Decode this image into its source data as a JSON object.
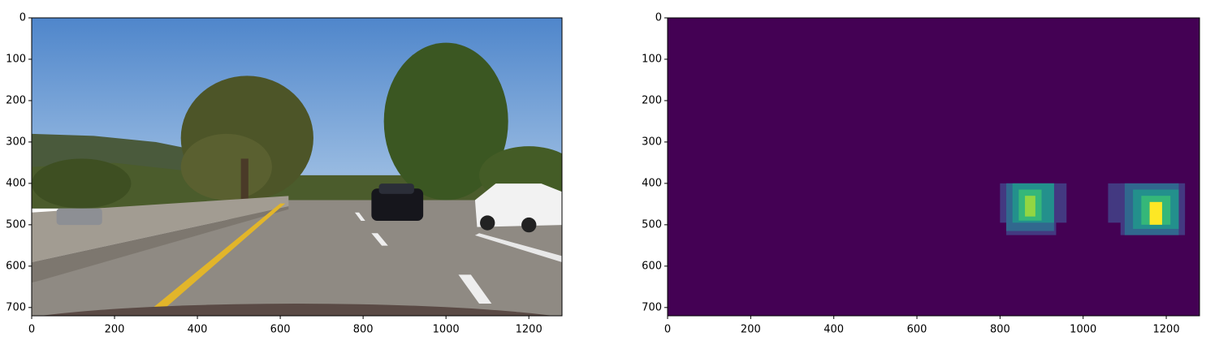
{
  "chart_data": [
    {
      "type": "image",
      "xlim": [
        0,
        1280
      ],
      "ylim": [
        720,
        0
      ],
      "xticks": [
        0,
        200,
        400,
        600,
        800,
        1000,
        1200
      ],
      "yticks": [
        0,
        100,
        200,
        300,
        400,
        500,
        600,
        700
      ]
    },
    {
      "type": "heatmap",
      "xlim": [
        0,
        1280
      ],
      "ylim": [
        720,
        0
      ],
      "xticks": [
        0,
        200,
        400,
        600,
        800,
        1000,
        1200
      ],
      "yticks": [
        0,
        100,
        200,
        300,
        400,
        500,
        600,
        700
      ],
      "cmap": "viridis",
      "clim": [
        0,
        6
      ],
      "background": 0,
      "cells": [
        {
          "x": [
            800,
            960
          ],
          "y": [
            400,
            495
          ],
          "value": 1
        },
        {
          "x": [
            815,
            935
          ],
          "y": [
            400,
            525
          ],
          "value": 1
        },
        {
          "x": [
            815,
            930
          ],
          "y": [
            400,
            515
          ],
          "value": 2
        },
        {
          "x": [
            830,
            930
          ],
          "y": [
            400,
            495
          ],
          "value": 3
        },
        {
          "x": [
            845,
            900
          ],
          "y": [
            415,
            490
          ],
          "value": 4
        },
        {
          "x": [
            860,
            885
          ],
          "y": [
            430,
            480
          ],
          "value": 5
        },
        {
          "x": [
            1060,
            1245
          ],
          "y": [
            400,
            495
          ],
          "value": 1
        },
        {
          "x": [
            1090,
            1245
          ],
          "y": [
            400,
            525
          ],
          "value": 1
        },
        {
          "x": [
            1100,
            1230
          ],
          "y": [
            400,
            525
          ],
          "value": 2
        },
        {
          "x": [
            1120,
            1230
          ],
          "y": [
            415,
            510
          ],
          "value": 3
        },
        {
          "x": [
            1140,
            1210
          ],
          "y": [
            430,
            500
          ],
          "value": 4
        },
        {
          "x": [
            1160,
            1190
          ],
          "y": [
            445,
            500
          ],
          "value": 6
        }
      ]
    }
  ]
}
